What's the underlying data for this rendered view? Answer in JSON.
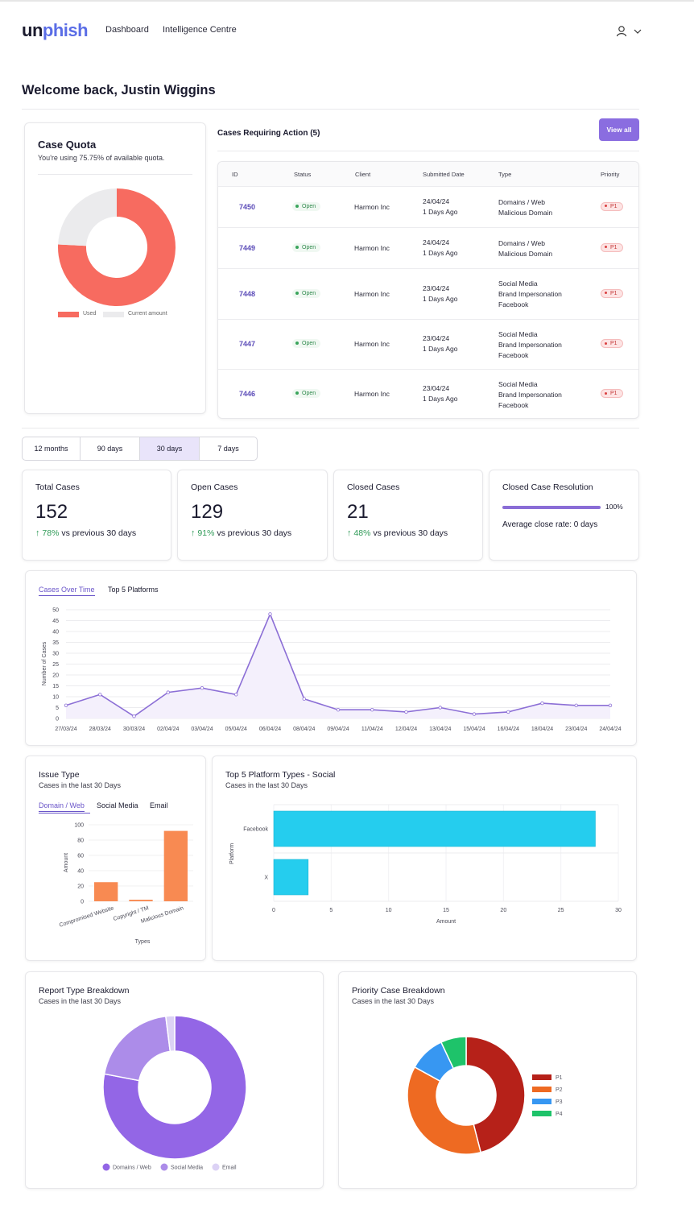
{
  "header": {
    "logo_part1": "un",
    "logo_part2": "phish",
    "nav": [
      "Dashboard",
      "Intelligence Centre"
    ]
  },
  "welcome": "Welcome back, Justin Wiggins",
  "case_quota": {
    "title": "Case Quota",
    "subtitle": "You're using 75.75% of available quota.",
    "used_percent": 75.75,
    "legend": [
      "Used",
      "Current amount"
    ],
    "colors": {
      "used": "#f76b60",
      "remaining": "#ebebed"
    }
  },
  "cases_action": {
    "title": "Cases Requiring Action (5)",
    "view_all": "View all",
    "columns": [
      "ID",
      "Status",
      "Client",
      "Submitted Date",
      "Type",
      "Priority"
    ],
    "rows": [
      {
        "id": "7450",
        "status": "Open",
        "client": "Harmon Inc",
        "date": "24/04/24",
        "ago": "1 Days Ago",
        "type": [
          "Domains / Web",
          "Malicious Domain"
        ],
        "priority": "P1"
      },
      {
        "id": "7449",
        "status": "Open",
        "client": "Harmon Inc",
        "date": "24/04/24",
        "ago": "1 Days Ago",
        "type": [
          "Domains / Web",
          "Malicious Domain"
        ],
        "priority": "P1"
      },
      {
        "id": "7448",
        "status": "Open",
        "client": "Harmon Inc",
        "date": "23/04/24",
        "ago": "1 Days Ago",
        "type": [
          "Social Media",
          "Brand Impersonation",
          "Facebook"
        ],
        "priority": "P1"
      },
      {
        "id": "7447",
        "status": "Open",
        "client": "Harmon Inc",
        "date": "23/04/24",
        "ago": "1 Days Ago",
        "type": [
          "Social Media",
          "Brand Impersonation",
          "Facebook"
        ],
        "priority": "P1"
      },
      {
        "id": "7446",
        "status": "Open",
        "client": "Harmon Inc",
        "date": "23/04/24",
        "ago": "1 Days Ago",
        "type": [
          "Social Media",
          "Brand Impersonation",
          "Facebook"
        ],
        "priority": "P1"
      }
    ]
  },
  "range_tabs": {
    "items": [
      "12 months",
      "90 days",
      "30 days",
      "7 days"
    ],
    "selected": "30 days"
  },
  "stats": {
    "total": {
      "label": "Total Cases",
      "value": "152",
      "pct": "78%",
      "suffix": "vs previous 30 days"
    },
    "open": {
      "label": "Open Cases",
      "value": "129",
      "pct": "91%",
      "suffix": "vs previous 30 days"
    },
    "closed": {
      "label": "Closed Cases",
      "value": "21",
      "pct": "48%",
      "suffix": "vs previous 30 days"
    },
    "resolution": {
      "label": "Closed Case Resolution",
      "percent_label": "100%",
      "percent": 100,
      "average": "Average close rate: 0 days"
    }
  },
  "cases_over_time": {
    "tabs": [
      "Cases Over Time",
      "Top 5 Platforms"
    ],
    "ylabel": "Number of Cases",
    "yticks": [
      0,
      5,
      10,
      15,
      20,
      25,
      30,
      35,
      40,
      45,
      50
    ],
    "xticks": [
      "27/03/24",
      "28/03/24",
      "30/03/24",
      "02/04/24",
      "03/04/24",
      "05/04/24",
      "06/04/24",
      "08/04/24",
      "09/04/24",
      "11/04/24",
      "12/04/24",
      "13/04/24",
      "15/04/24",
      "16/04/24",
      "18/04/24",
      "23/04/24",
      "24/04/24"
    ]
  },
  "issue_type": {
    "title": "Issue Type",
    "subtitle": "Cases in the last 30 Days",
    "tabs": [
      "Domain / Web",
      "Social Media",
      "Email"
    ],
    "ylabel": "Amount",
    "xlabel": "Types",
    "yticks": [
      0,
      20,
      40,
      60,
      80,
      100
    ]
  },
  "platform_types": {
    "title": "Top 5 Platform Types - Social",
    "subtitle": "Cases in the last 30 Days",
    "ylabel": "Platform",
    "xlabel": "Amount",
    "xticks": [
      0,
      5,
      10,
      15,
      20,
      25,
      30
    ]
  },
  "report_type": {
    "title": "Report Type Breakdown",
    "subtitle": "Cases in the last 30 Days"
  },
  "priority": {
    "title": "Priority Case Breakdown",
    "subtitle": "Cases in the last 30 Days"
  },
  "chart_data": [
    {
      "type": "pie",
      "title": "Case Quota",
      "categories": [
        "Used",
        "Current amount"
      ],
      "values": [
        75.75,
        24.25
      ]
    },
    {
      "type": "area",
      "title": "Cases Over Time",
      "xlabel": "",
      "ylabel": "Number of Cases",
      "ylim": [
        0,
        50
      ],
      "categories": [
        "27/03/24",
        "28/03/24",
        "30/03/24",
        "02/04/24",
        "03/04/24",
        "05/04/24",
        "06/04/24",
        "08/04/24",
        "09/04/24",
        "11/04/24",
        "12/04/24",
        "13/04/24",
        "15/04/24",
        "16/04/24",
        "18/04/24",
        "23/04/24",
        "24/04/24"
      ],
      "values": [
        6,
        11,
        1,
        12,
        14,
        11,
        48,
        9,
        4,
        4,
        3,
        5,
        2,
        3,
        7,
        6,
        6
      ],
      "color": "#8c6fd6"
    },
    {
      "type": "bar",
      "title": "Issue Type",
      "xlabel": "Types",
      "ylabel": "Amount",
      "ylim": [
        0,
        100
      ],
      "categories": [
        "Compromised Website",
        "Copyright / TM",
        "Malicious Domain"
      ],
      "values": [
        25,
        2,
        92
      ],
      "color": "#f88a52"
    },
    {
      "type": "bar",
      "title": "Top 5 Platform Types - Social",
      "orientation": "horizontal",
      "xlabel": "Amount",
      "ylabel": "Platform",
      "xlim": [
        0,
        30
      ],
      "categories": [
        "Facebook",
        "X"
      ],
      "values": [
        28,
        3
      ],
      "color": "#25cdee"
    },
    {
      "type": "pie",
      "title": "Report Type Breakdown",
      "categories": [
        "Domains / Web",
        "Social Media",
        "Email"
      ],
      "values": [
        78,
        20,
        2
      ],
      "colors": [
        "#9366e6",
        "#ac8ce9",
        "#dcd2f5"
      ]
    },
    {
      "type": "pie",
      "title": "Priority Case Breakdown",
      "categories": [
        "P1",
        "P2",
        "P3",
        "P4"
      ],
      "values": [
        46,
        37,
        10,
        7
      ],
      "colors": [
        "#b62119",
        "#ee6a22",
        "#3797f2",
        "#1ec36a"
      ]
    }
  ]
}
